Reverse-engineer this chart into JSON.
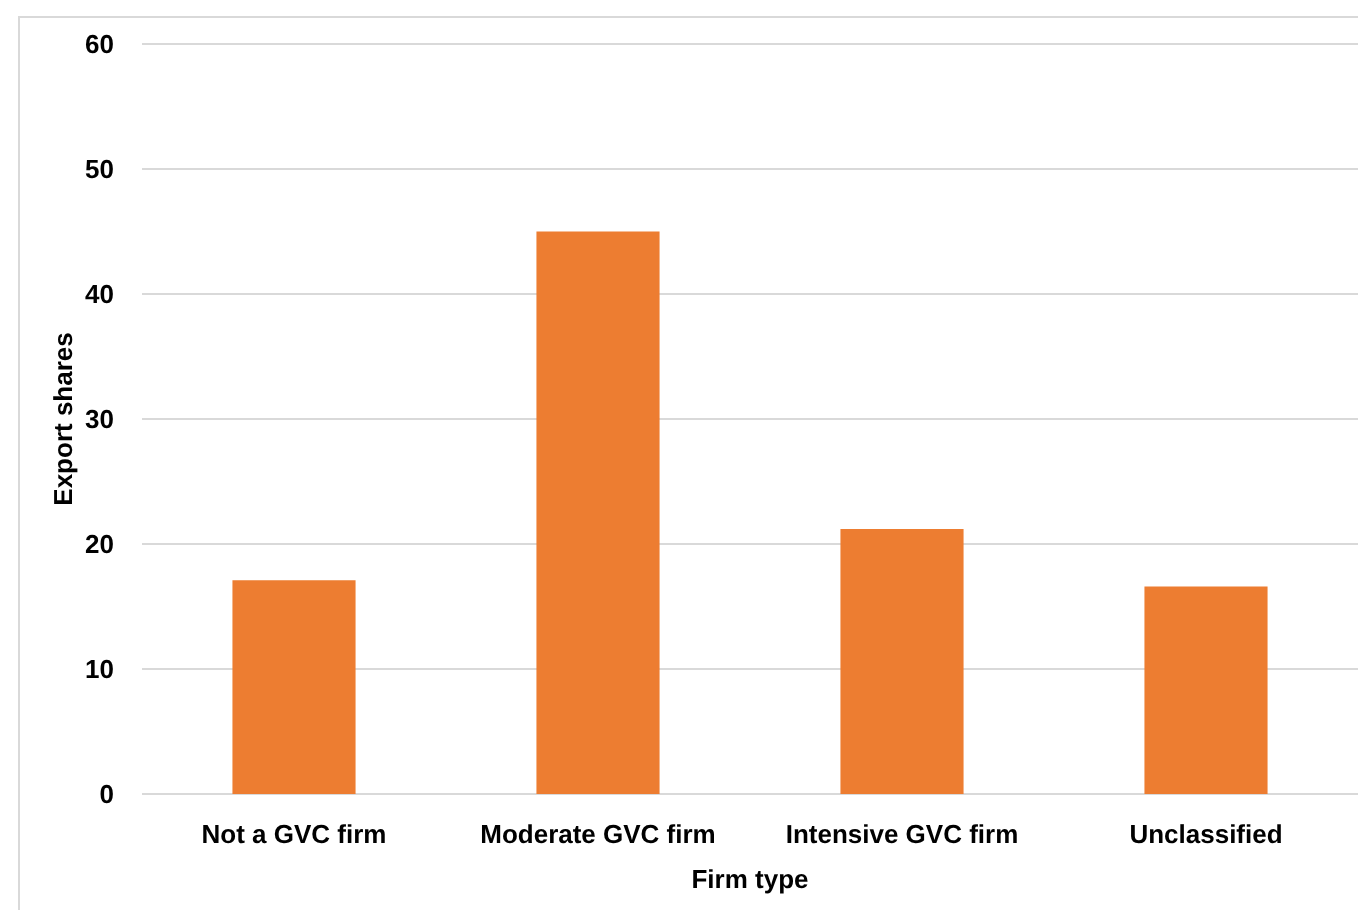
{
  "chart_data": {
    "type": "bar",
    "xlabel": "Firm type",
    "ylabel": "Export shares",
    "categories": [
      "Not a GVC firm",
      "Moderate GVC firm",
      "Intensive GVC firm",
      "Unclassified"
    ],
    "values": [
      17.1,
      45.0,
      21.2,
      16.6
    ],
    "color": "#ed7d31",
    "ylim": [
      0,
      60
    ],
    "yticks": [
      0,
      10,
      20,
      30,
      40,
      50,
      60
    ],
    "grid": "y"
  }
}
